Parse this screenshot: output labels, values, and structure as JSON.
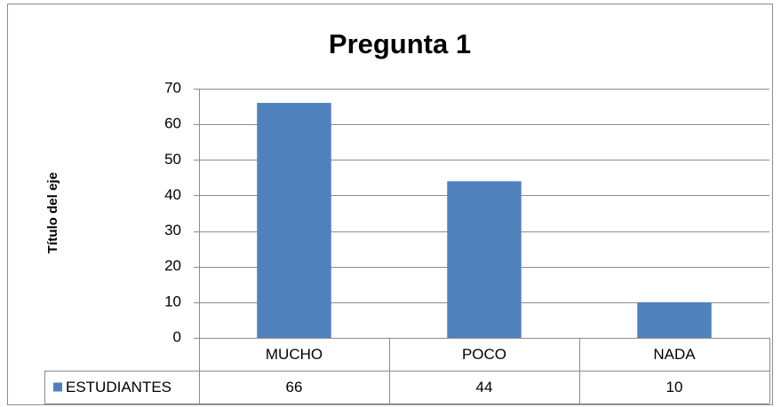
{
  "chart_data": {
    "type": "bar",
    "title": "Pregunta 1",
    "y_label": "Título del eje",
    "categories": [
      "MUCHO",
      "POCO",
      "NADA"
    ],
    "series": [
      {
        "name": "ESTUDIANTES",
        "color": "#4f81bd",
        "values": [
          66,
          44,
          10
        ]
      }
    ],
    "ylim": [
      0,
      70
    ],
    "yticks": [
      0,
      10,
      20,
      30,
      40,
      50,
      60,
      70
    ],
    "grid": true,
    "data_table": true
  }
}
